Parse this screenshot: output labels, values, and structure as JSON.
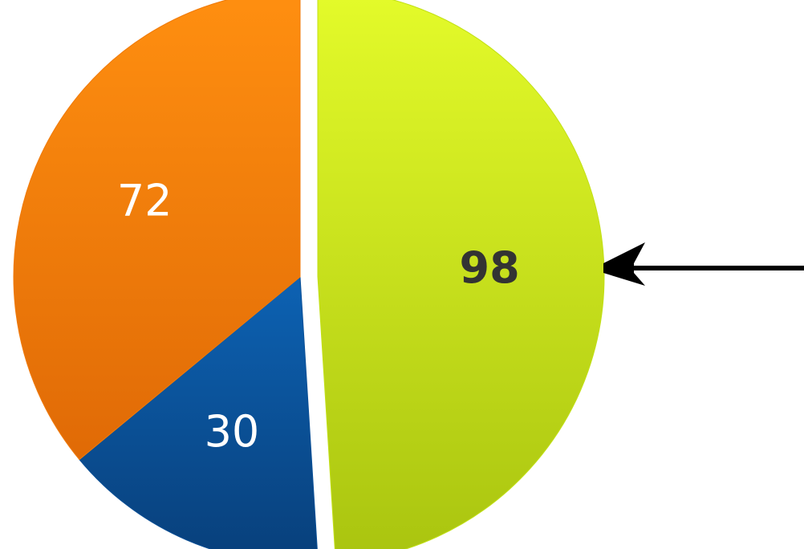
{
  "chart_data": {
    "type": "pie",
    "values": [
      98,
      30,
      72
    ],
    "labels": [
      "98",
      "30",
      "72"
    ],
    "colors": [
      "#c2e016",
      "#0a4f96",
      "#f07a0a"
    ],
    "label_colors": [
      "#333333",
      "#ffffff",
      "#ffffff"
    ],
    "label_weights": [
      "bold",
      "normal",
      "normal"
    ],
    "exploded": [
      true,
      false,
      false
    ],
    "start": "top",
    "direction": "clockwise",
    "annotation": {
      "type": "arrow",
      "points_to": "98",
      "color": "#000000"
    }
  }
}
